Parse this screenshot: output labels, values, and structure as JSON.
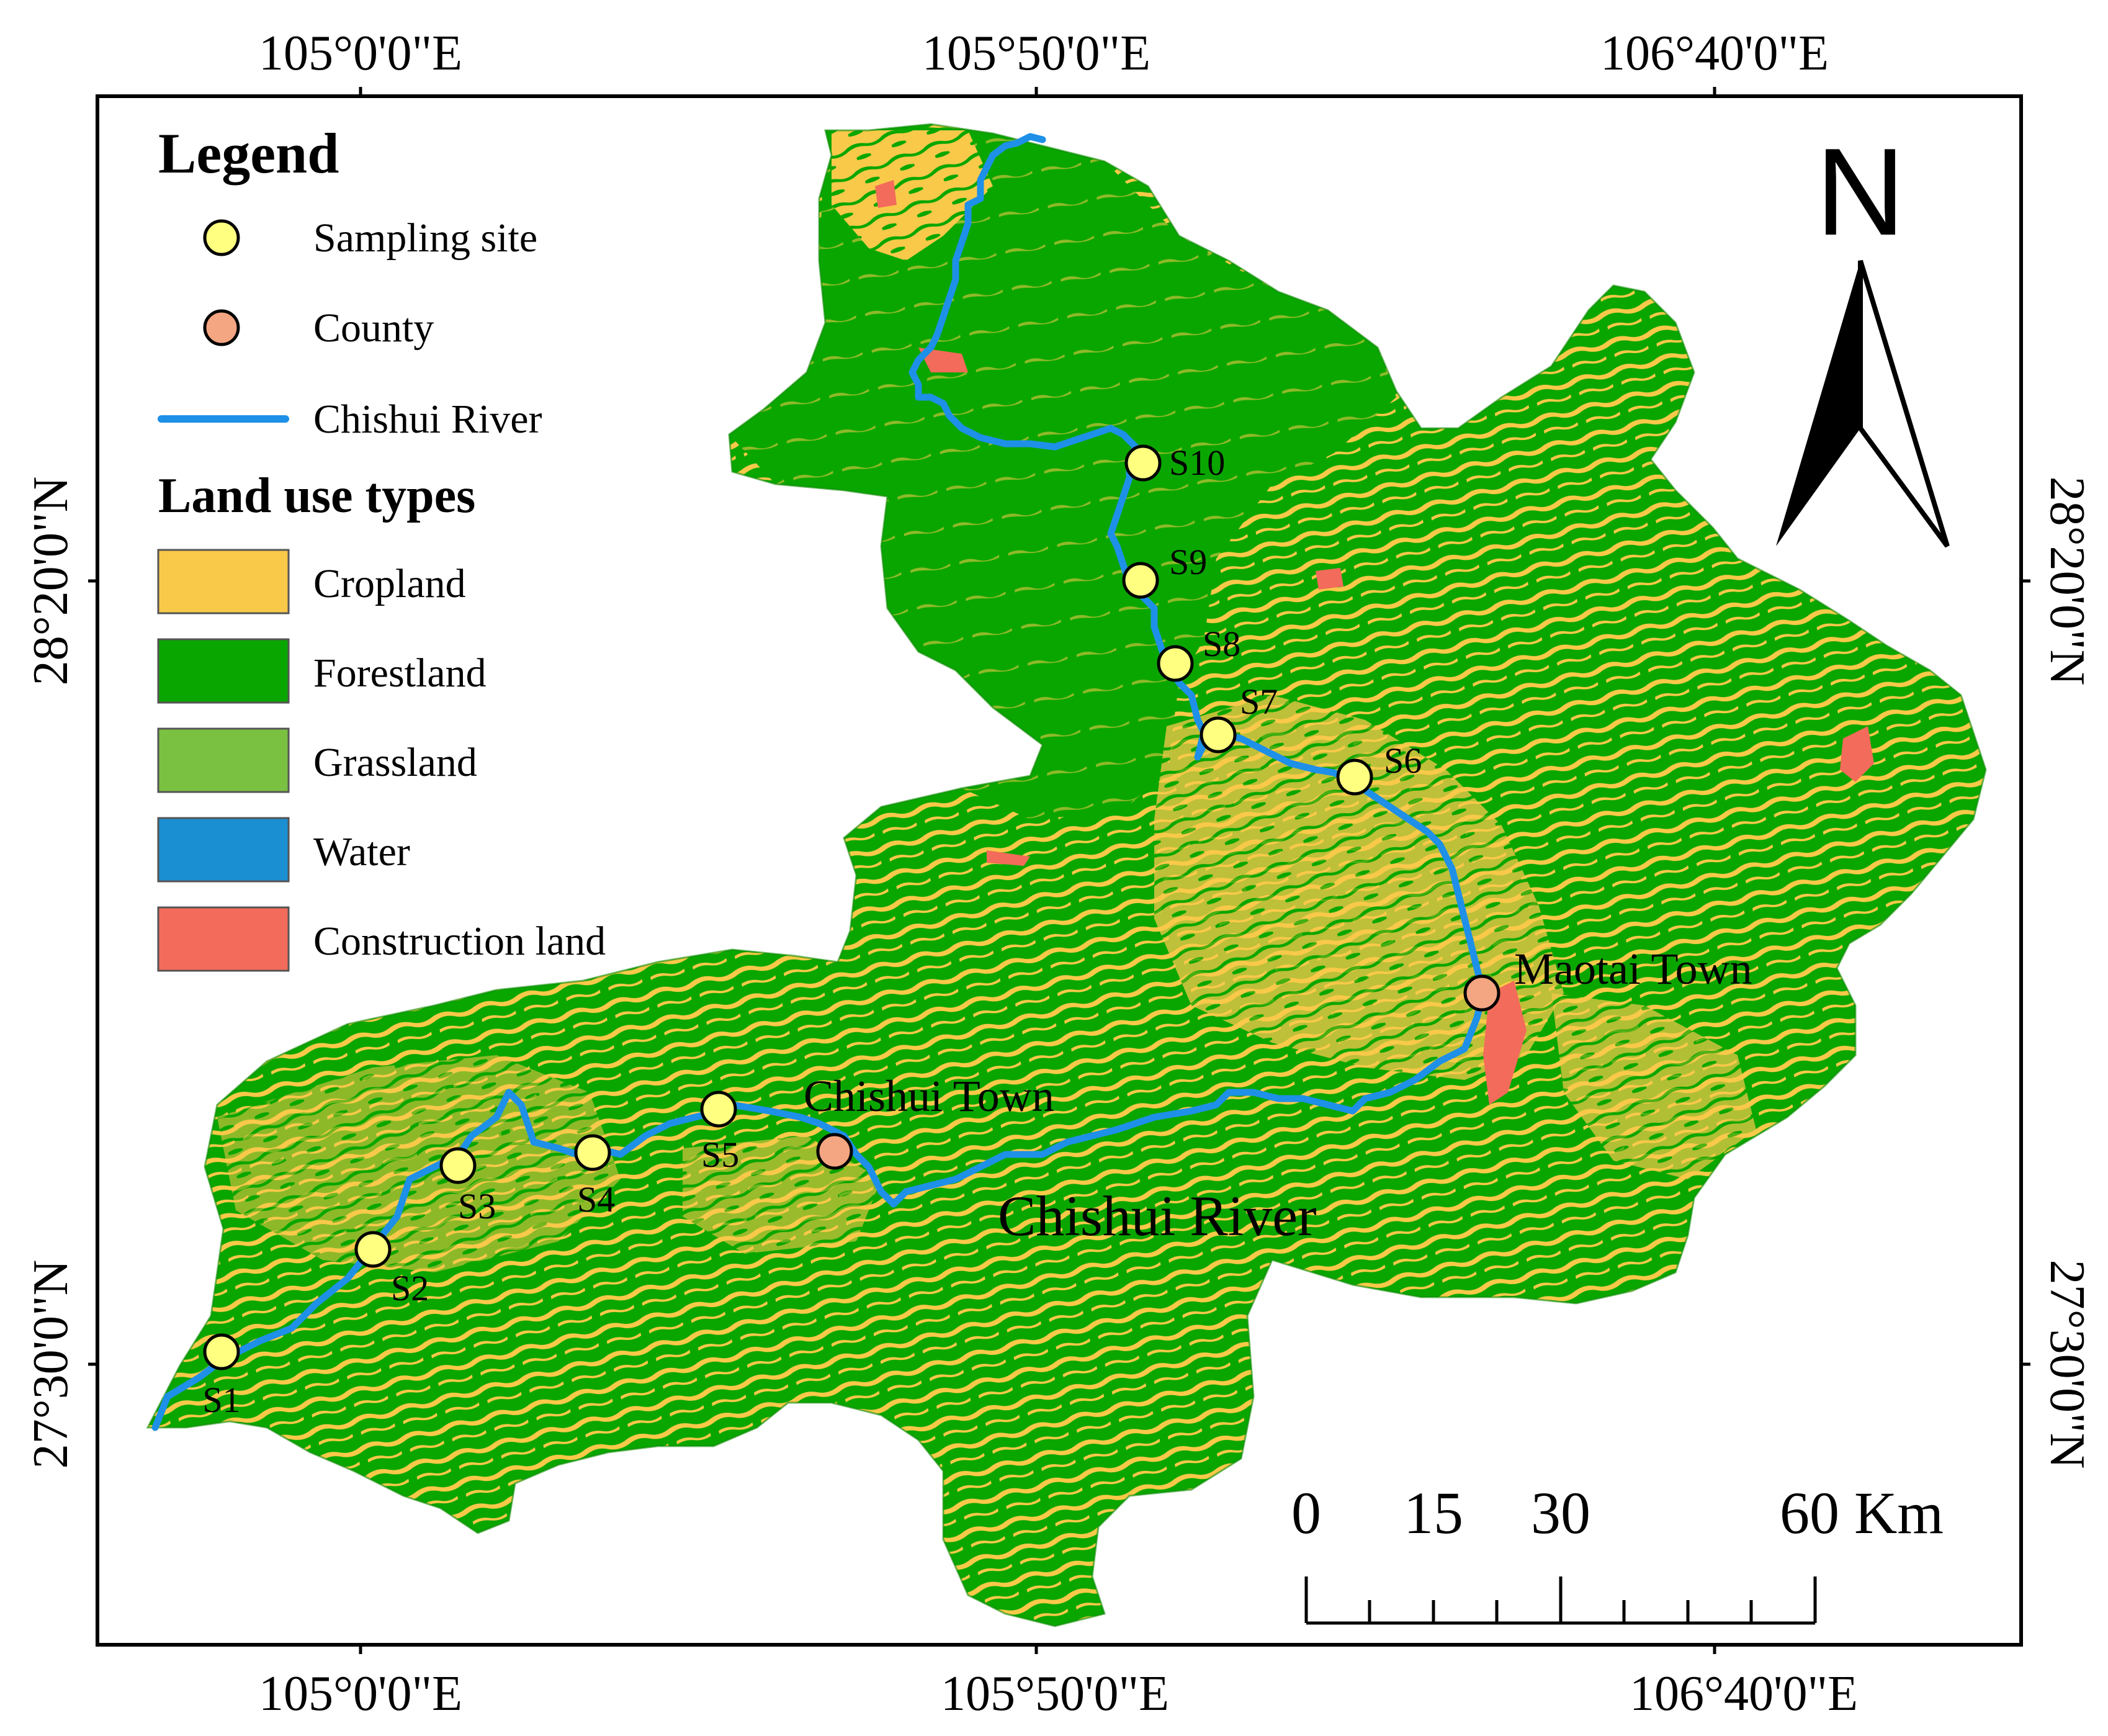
{
  "map": {
    "coordinates": {
      "top": [
        "105°0'0\"E",
        "105°50'0\"E",
        "106°40'0\"E"
      ],
      "bottom": [
        "105°0'0\"E",
        "105°50'0\"E",
        "106°40'0\"E"
      ],
      "left": [
        "28°20'0\"N",
        "27°30'0\"N"
      ],
      "right": [
        "28°20'0\"N",
        "27°30'0\"N"
      ]
    },
    "legend": {
      "title": "Legend",
      "point_items": [
        {
          "label": "Sampling site",
          "color": "#ffff80"
        },
        {
          "label": "County",
          "color": "#f4a582"
        }
      ],
      "line_item": {
        "label": "Chishui River",
        "color": "#1e90e8"
      },
      "land_use_title": "Land use types",
      "land_use": [
        {
          "label": "Cropland",
          "color": "#f9c94a"
        },
        {
          "label": "Forestland",
          "color": "#0aa600"
        },
        {
          "label": "Grassland",
          "color": "#7ac142"
        },
        {
          "label": "Water",
          "color": "#1a8fd2"
        },
        {
          "label": "Construction land",
          "color": "#f36b5a"
        }
      ]
    },
    "sampling_sites": [
      "S1",
      "S2",
      "S3",
      "S4",
      "S5",
      "S6",
      "S7",
      "S8",
      "S9",
      "S10"
    ],
    "towns": [
      "Maotai Town",
      "Chishui Town"
    ],
    "river_label": "Chishui River",
    "north_arrow": {
      "label": "N"
    },
    "scale_bar": {
      "labels": [
        "0",
        "15",
        "30",
        "60 Km"
      ]
    }
  }
}
